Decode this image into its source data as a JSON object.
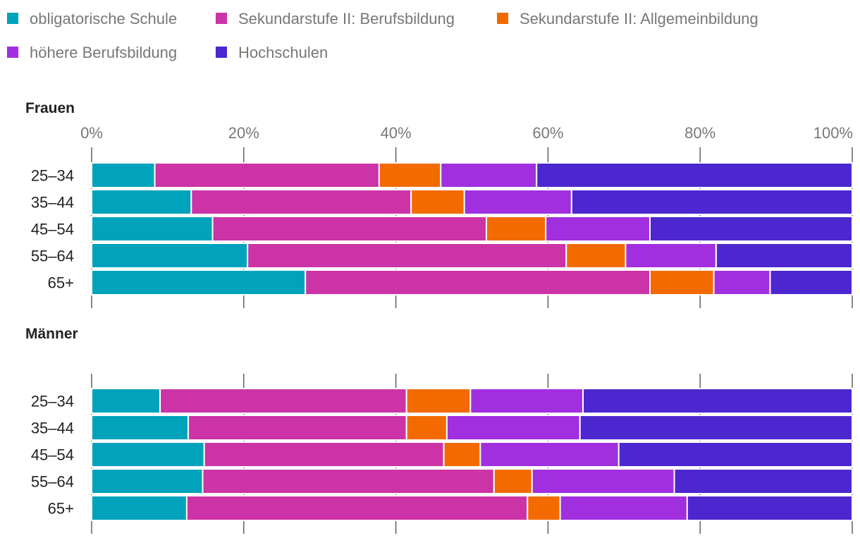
{
  "chart_data": {
    "type": "bar",
    "orientation": "horizontal",
    "stacked": true,
    "percent_scale": true,
    "xlim": [
      0,
      100
    ],
    "xticks": [
      0,
      20,
      40,
      60,
      80,
      100
    ],
    "xtick_suffix": "%",
    "grid": true,
    "legend_position": "top-left",
    "categories": [
      "25–34",
      "35–44",
      "45–54",
      "55–64",
      "65+"
    ],
    "series": [
      {
        "name": "obligatorische Schule",
        "color": "#00a3bb"
      },
      {
        "name": "Sekundarstufe II: Berufsbildung",
        "color": "#cc33a6"
      },
      {
        "name": "Sekundarstufe II: Allgemeinbildung",
        "color": "#f26a00"
      },
      {
        "name": "höhere Berufsbildung",
        "color": "#a12fe0"
      },
      {
        "name": "Hochschulen",
        "color": "#4c27cf"
      }
    ],
    "panels": [
      {
        "title": "Frauen",
        "show_tick_labels": true,
        "rows": [
          {
            "category": "25–34",
            "values": [
              8.3,
              29.5,
              8.1,
              12.6,
              41.5
            ]
          },
          {
            "category": "35–44",
            "values": [
              13.1,
              28.9,
              7.0,
              14.1,
              36.9
            ]
          },
          {
            "category": "45–54",
            "values": [
              15.9,
              36.0,
              7.8,
              13.7,
              26.6
            ]
          },
          {
            "category": "55–64",
            "values": [
              20.5,
              41.9,
              7.8,
              11.9,
              17.9
            ]
          },
          {
            "category": "65+",
            "values": [
              28.1,
              45.3,
              8.4,
              7.4,
              10.8
            ]
          }
        ]
      },
      {
        "title": "Männer",
        "show_tick_labels": false,
        "rows": [
          {
            "category": "25–34",
            "values": [
              9.0,
              32.4,
              8.4,
              14.8,
              35.4
            ]
          },
          {
            "category": "35–44",
            "values": [
              12.7,
              28.7,
              5.3,
              17.5,
              35.8
            ]
          },
          {
            "category": "45–54",
            "values": [
              14.8,
              31.5,
              4.8,
              18.2,
              30.7
            ]
          },
          {
            "category": "55–64",
            "values": [
              14.6,
              38.3,
              5.0,
              18.7,
              23.4
            ]
          },
          {
            "category": "65+",
            "values": [
              12.5,
              44.8,
              4.3,
              16.7,
              21.7
            ]
          }
        ]
      }
    ]
  }
}
